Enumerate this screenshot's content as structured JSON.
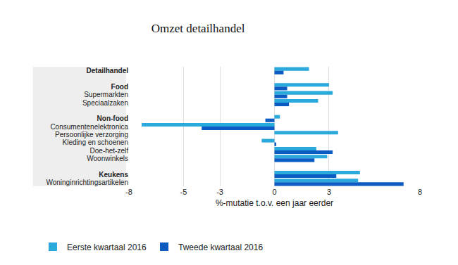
{
  "chart_data": {
    "type": "bar",
    "title": "Omzet detailhandel",
    "orientation": "horizontal",
    "x_label": "%-mutatie t.o.v. een jaar eerder",
    "categories": [
      "Detailhandel",
      null,
      "Food",
      "Supermarkten",
      "Speciaalzaken",
      null,
      "Non-food",
      "Consumentenelektronica",
      "Persoonlijke verzorging",
      "Kleding en schoenen",
      "Doe-het-zelf",
      "Woonwinkels",
      null,
      "Keukens",
      "Woninginrichtingsartikelen"
    ],
    "series": [
      {
        "name": "Eerste kwartaal 2016",
        "color": "#29a9dc",
        "values": [
          1.9,
          null,
          3.0,
          3.2,
          2.4,
          null,
          0.3,
          -7.3,
          3.5,
          -0.7,
          2.3,
          2.9,
          null,
          4.7,
          4.6
        ]
      },
      {
        "name": "Tweede kwartaal 2016",
        "color": "#0b5bc2",
        "values": [
          0.5,
          null,
          0.7,
          0.7,
          0.8,
          null,
          -0.5,
          -4.0,
          0,
          0.1,
          3.2,
          2.2,
          null,
          3.4,
          7.1
        ]
      }
    ],
    "xlim": [
      -8,
      8
    ],
    "xticks": [
      -8,
      -5,
      -3,
      0,
      3,
      8
    ],
    "grid": true,
    "legend": "bottom left"
  }
}
